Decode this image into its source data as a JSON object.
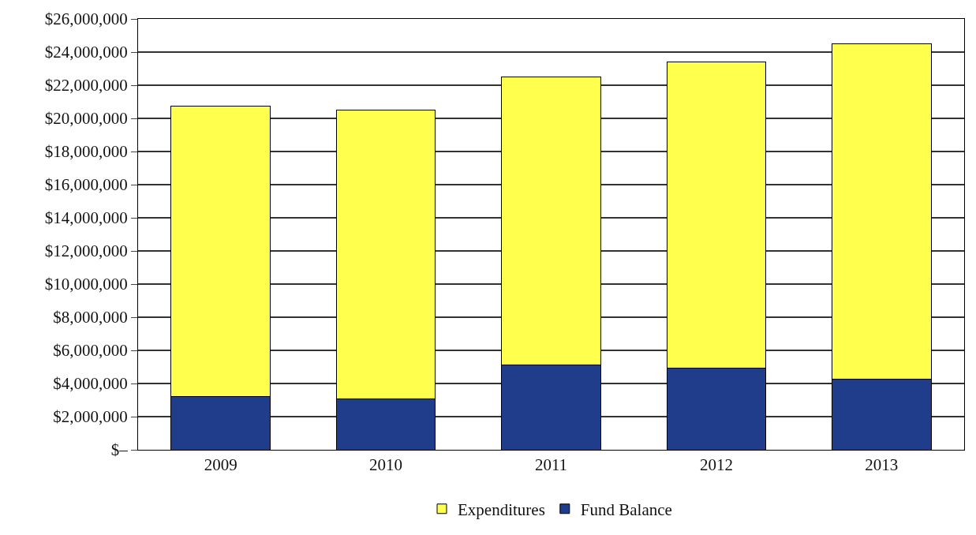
{
  "chart_data": {
    "type": "bar",
    "stacked": true,
    "categories": [
      "2009",
      "2010",
      "2011",
      "2012",
      "2013"
    ],
    "series": [
      {
        "name": "Fund Balance",
        "color": "#1f3d8a",
        "values": [
          3200000,
          3050000,
          5100000,
          4950000,
          4250000
        ]
      },
      {
        "name": "Expenditures",
        "color": "#ffff4d",
        "values": [
          17550000,
          17450000,
          17400000,
          18450000,
          20250000
        ]
      }
    ],
    "ylim": [
      0,
      26000000
    ],
    "yticks": [
      {
        "value": 0,
        "label": "$–"
      },
      {
        "value": 2000000,
        "label": "$2,000,000"
      },
      {
        "value": 4000000,
        "label": "$4,000,000"
      },
      {
        "value": 6000000,
        "label": "$6,000,000"
      },
      {
        "value": 8000000,
        "label": "$8,000,000"
      },
      {
        "value": 10000000,
        "label": "$10,000,000"
      },
      {
        "value": 12000000,
        "label": "$12,000,000"
      },
      {
        "value": 14000000,
        "label": "$14,000,000"
      },
      {
        "value": 16000000,
        "label": "$16,000,000"
      },
      {
        "value": 18000000,
        "label": "$18,000,000"
      },
      {
        "value": 20000000,
        "label": "$20,000,000"
      },
      {
        "value": 22000000,
        "label": "$22,000,000"
      },
      {
        "value": 24000000,
        "label": "$24,000,000"
      },
      {
        "value": 26000000,
        "label": "$26,000,000"
      }
    ],
    "grid": "y",
    "legend": "bottom"
  }
}
